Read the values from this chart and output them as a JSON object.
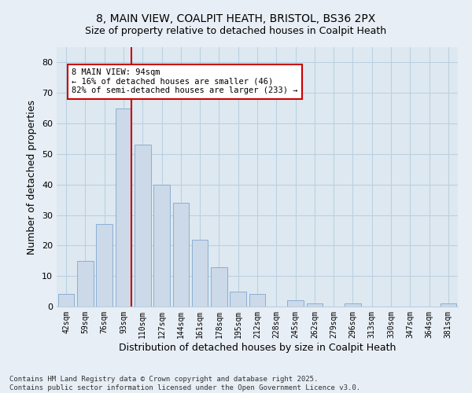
{
  "title1": "8, MAIN VIEW, COALPIT HEATH, BRISTOL, BS36 2PX",
  "title2": "Size of property relative to detached houses in Coalpit Heath",
  "xlabel": "Distribution of detached houses by size in Coalpit Heath",
  "ylabel": "Number of detached properties",
  "bar_labels": [
    "42sqm",
    "59sqm",
    "76sqm",
    "93sqm",
    "110sqm",
    "127sqm",
    "144sqm",
    "161sqm",
    "178sqm",
    "195sqm",
    "212sqm",
    "228sqm",
    "245sqm",
    "262sqm",
    "279sqm",
    "296sqm",
    "313sqm",
    "330sqm",
    "347sqm",
    "364sqm",
    "381sqm"
  ],
  "bar_values": [
    4,
    15,
    27,
    65,
    53,
    40,
    34,
    22,
    13,
    5,
    4,
    0,
    2,
    1,
    0,
    1,
    0,
    0,
    0,
    0,
    1
  ],
  "bar_color": "#ccd9e8",
  "bar_edge_color": "#8aafd4",
  "vline_bar_index": 3,
  "vline_color": "#cc0000",
  "annotation_title": "8 MAIN VIEW: 94sqm",
  "annotation_line1": "← 16% of detached houses are smaller (46)",
  "annotation_line2": "82% of semi-detached houses are larger (233) →",
  "annotation_box_edgecolor": "#cc0000",
  "ylim": [
    0,
    85
  ],
  "yticks": [
    0,
    10,
    20,
    30,
    40,
    50,
    60,
    70,
    80
  ],
  "grid_color": "#b8cfe0",
  "plot_bg_color": "#dde8f0",
  "fig_bg_color": "#e8eef5",
  "footer": "Contains HM Land Registry data © Crown copyright and database right 2025.\nContains public sector information licensed under the Open Government Licence v3.0.",
  "title1_fontsize": 10,
  "title2_fontsize": 9,
  "ylabel_fontsize": 9,
  "xlabel_fontsize": 9,
  "tick_fontsize": 8,
  "xtick_fontsize": 7,
  "footer_fontsize": 6.5,
  "ann_fontsize": 7.5
}
